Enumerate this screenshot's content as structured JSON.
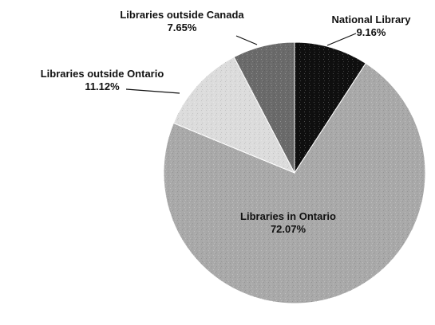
{
  "chart_data": {
    "type": "pie",
    "start_angle_deg": 0,
    "direction": "clockwise",
    "slices": [
      {
        "label": "National Library",
        "value": 9.16,
        "display": "9.16%",
        "color": "#0f0f0f"
      },
      {
        "label": "Libraries in Ontario",
        "value": 72.07,
        "display": "72.07%",
        "color": "#a9a9a9"
      },
      {
        "label": "Libraries outside Ontario",
        "value": 11.12,
        "display": "11.12%",
        "color": "#dcdcdc"
      },
      {
        "label": "Libraries outside Canada",
        "value": 7.65,
        "display": "7.65%",
        "color": "#6a6a6a"
      }
    ]
  }
}
